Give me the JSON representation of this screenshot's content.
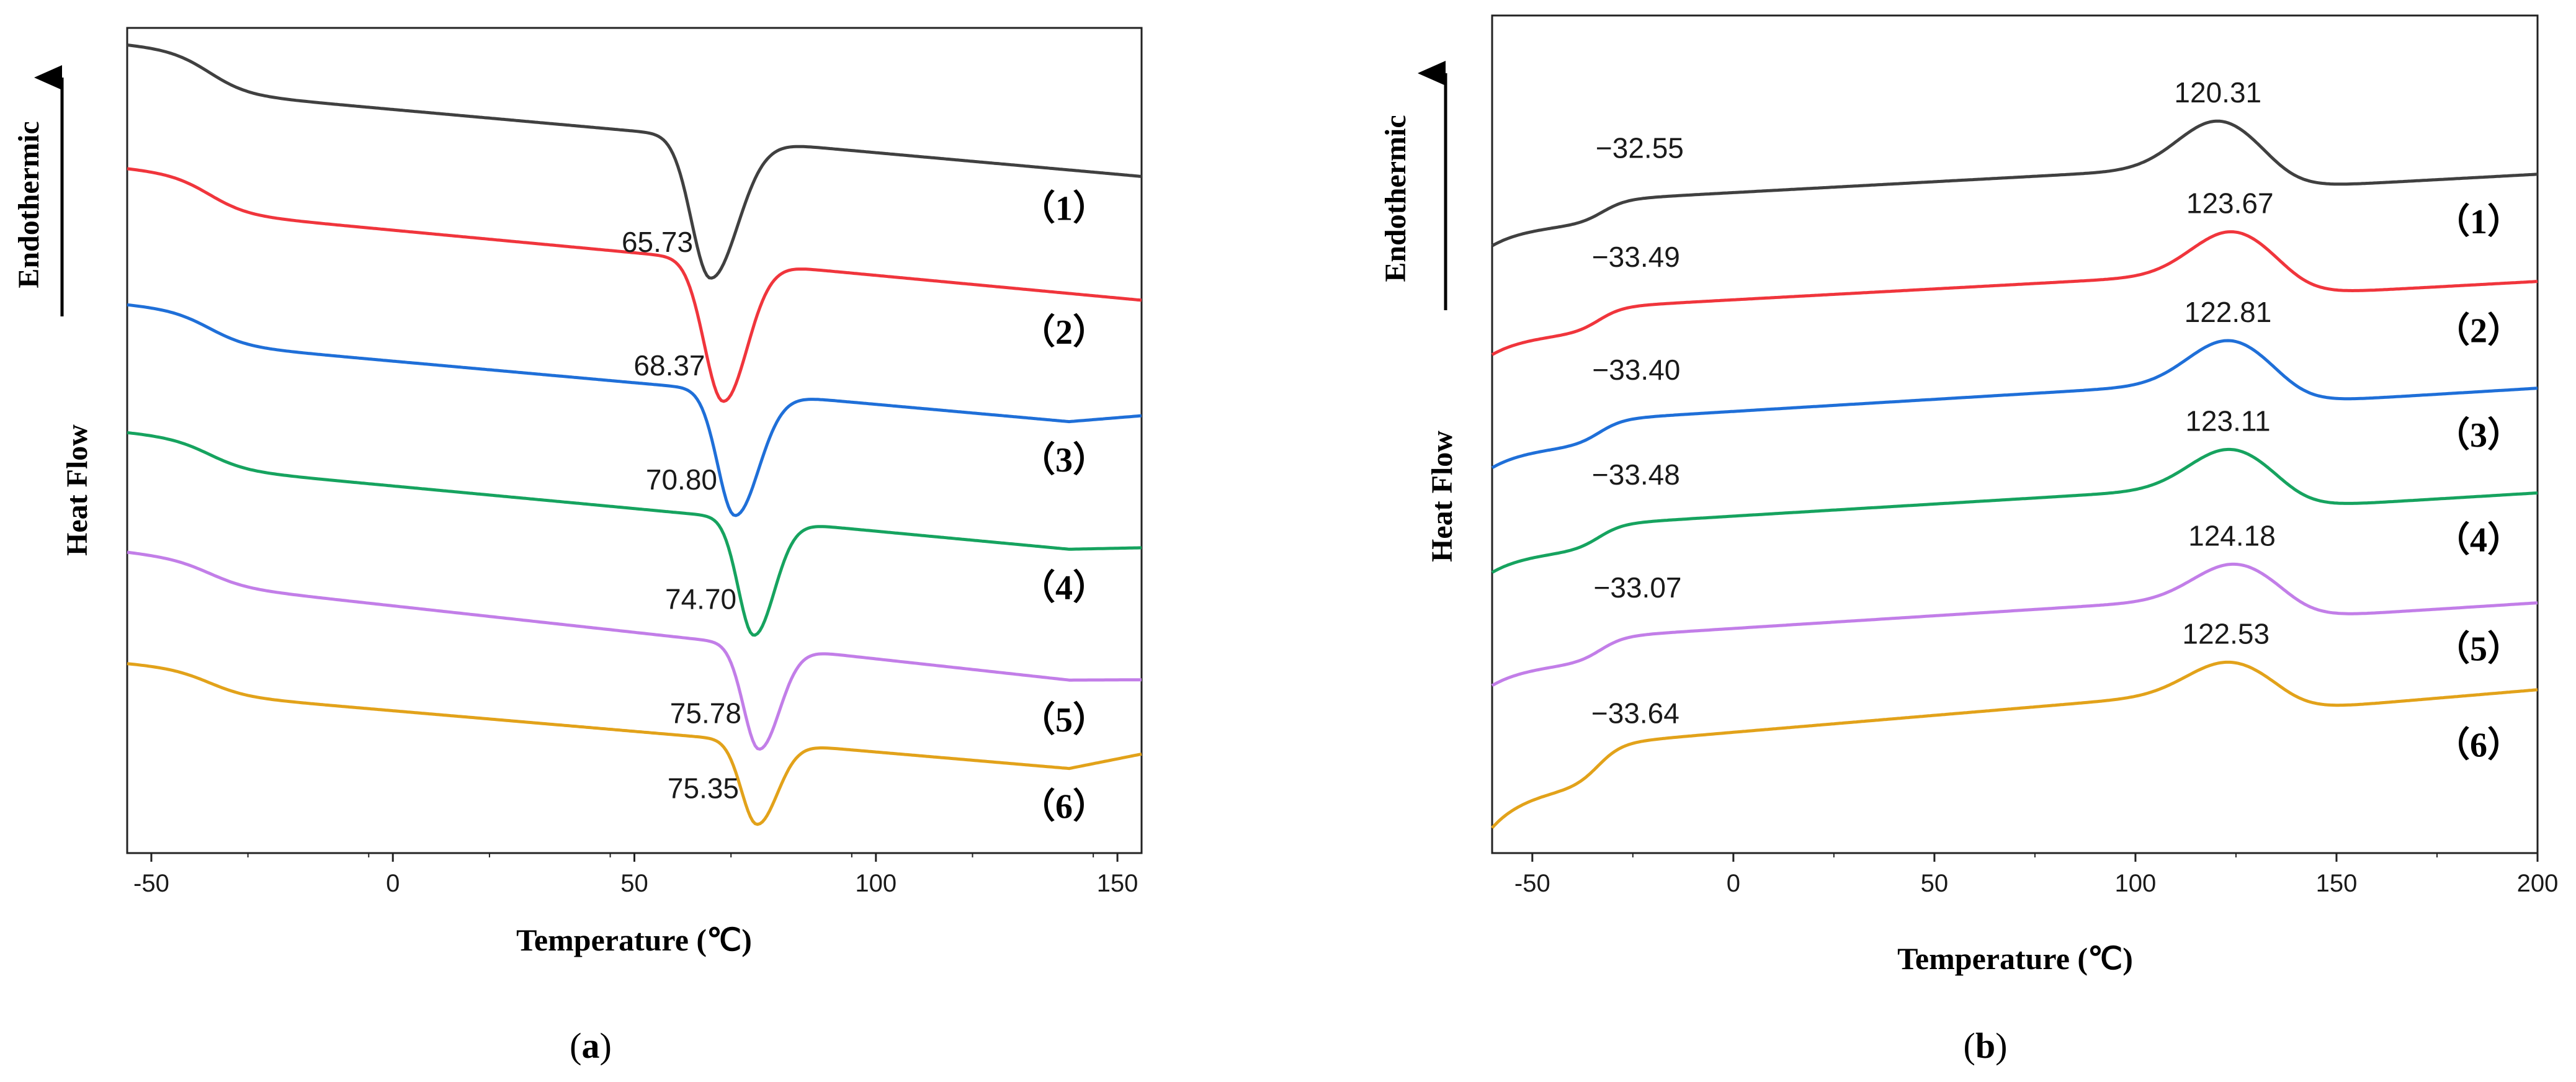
{
  "colors": [
    "#404040",
    "#f0353c",
    "#1f6fd8",
    "#16a35f",
    "#c27ee8",
    "#e2a21a"
  ],
  "chart_data": [
    {
      "type": "line",
      "panel": "a",
      "panel_label_open": "(",
      "panel_label_letter": "a",
      "panel_label_close": ")",
      "xlabel": "Temperature (℃)",
      "ylabel": "Heat Flow",
      "arrow_label": "Endothermic",
      "xlim": [
        -55,
        155
      ],
      "xticks": [
        -50,
        0,
        50,
        100,
        150
      ],
      "x_tick_labels": [
        "-50",
        "0",
        "50",
        "100",
        "150"
      ],
      "yticks": [],
      "legend_position": "right, at each curve",
      "series": [
        {
          "name": "（1）",
          "peak_label": "65.73",
          "peak_x": 65.73,
          "start": 0.02,
          "step": 0.05,
          "step_x": -38,
          "end": 0.18,
          "peak_depth": 0.17,
          "peak_w": 5.5,
          "right_w": 8,
          "tail": 0.0
        },
        {
          "name": "（2）",
          "peak_label": "68.37",
          "peak_x": 68.37,
          "start": 0.17,
          "step": 0.045,
          "step_x": -38,
          "end": 0.33,
          "peak_depth": 0.17,
          "peak_w": 5.5,
          "right_w": 7,
          "tail": 0.0
        },
        {
          "name": "（3）",
          "peak_label": "70.80",
          "peak_x": 70.8,
          "start": 0.335,
          "step": 0.04,
          "step_x": -38,
          "end": 0.485,
          "peak_depth": 0.15,
          "peak_w": 5,
          "right_w": 7,
          "tail": -0.015
        },
        {
          "name": "（4）",
          "peak_label": "74.70",
          "peak_x": 74.7,
          "start": 0.49,
          "step": 0.035,
          "step_x": -38,
          "end": 0.64,
          "peak_depth": 0.14,
          "peak_w": 4.5,
          "right_w": 6,
          "tail": -0.01
        },
        {
          "name": "（5）",
          "peak_label": "75.78",
          "peak_x": 75.78,
          "start": 0.635,
          "step": 0.03,
          "step_x": -38,
          "end": 0.8,
          "peak_depth": 0.125,
          "peak_w": 4.5,
          "right_w": 6,
          "tail": -0.01
        },
        {
          "name": "（6）",
          "peak_label": "75.35",
          "peak_x": 75.35,
          "start": 0.77,
          "step": 0.03,
          "step_x": -38,
          "end": 0.905,
          "peak_depth": 0.1,
          "peak_w": 4.5,
          "right_w": 6,
          "tail": -0.025
        }
      ]
    },
    {
      "type": "line",
      "panel": "b",
      "panel_label_open": "(",
      "panel_label_letter": "b",
      "panel_label_close": ")",
      "xlabel": "Temperature (℃)",
      "ylabel": "Heat Flow",
      "arrow_label": "Endothermic",
      "xlim": [
        -60,
        200
      ],
      "xticks": [
        -50,
        0,
        50,
        100,
        150,
        200
      ],
      "x_tick_labels": [
        "-50",
        "0",
        "50",
        "100",
        "150",
        "200"
      ],
      "yticks": [],
      "legend_position": "right, at each curve",
      "series": [
        {
          "name": "（1）",
          "tg_label": "−32.55",
          "tg": -32.55,
          "peak_label": "120.31",
          "peak_x": 120.31,
          "base": 0.255,
          "drop": 0.028,
          "slope": 0.0012,
          "peak_h": 0.055,
          "after": 0.165
        },
        {
          "name": "（2）",
          "tg_label": "−33.49",
          "tg": -33.49,
          "peak_label": "123.67",
          "peak_x": 123.67,
          "base": 0.385,
          "drop": 0.03,
          "slope": 0.0011,
          "peak_h": 0.05,
          "after": 0.295
        },
        {
          "name": "（3）",
          "tg_label": "−33.40",
          "tg": -33.4,
          "peak_label": "122.81",
          "peak_x": 122.81,
          "base": 0.52,
          "drop": 0.03,
          "slope": 0.0011,
          "peak_h": 0.05,
          "after": 0.42
        },
        {
          "name": "（4）",
          "tg_label": "−33.48",
          "tg": -33.48,
          "peak_label": "123.11",
          "peak_x": 123.11,
          "base": 0.645,
          "drop": 0.03,
          "slope": 0.0011,
          "peak_h": 0.045,
          "after": 0.545
        },
        {
          "name": "（5）",
          "tg_label": "−33.07",
          "tg": -33.07,
          "peak_label": "124.18",
          "peak_x": 124.18,
          "base": 0.78,
          "drop": 0.03,
          "slope": 0.0011,
          "peak_h": 0.04,
          "after": 0.675
        },
        {
          "name": "（6）",
          "tg_label": "−33.64",
          "tg": -33.64,
          "peak_label": "122.53",
          "peak_x": 122.53,
          "base": 0.93,
          "drop": 0.05,
          "slope": 0.0011,
          "peak_h": 0.035,
          "after": 0.79
        }
      ]
    }
  ]
}
